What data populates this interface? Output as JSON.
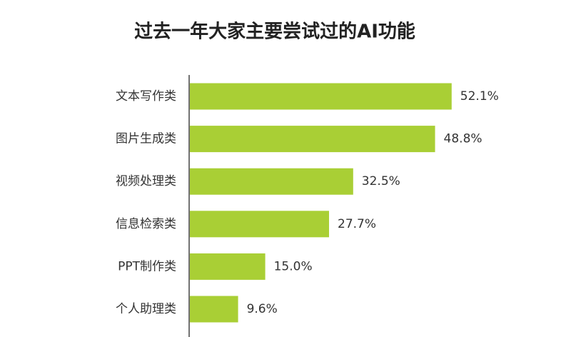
{
  "chart_data": {
    "type": "bar",
    "orientation": "horizontal",
    "title": "过去一年大家主要尝试过的AI功能",
    "categories": [
      "文本写作类",
      "图片生成类",
      "视频处理类",
      "信息检索类",
      "PPT制作类",
      "个人助理类"
    ],
    "values": [
      52.1,
      48.8,
      32.5,
      27.7,
      15.0,
      9.6
    ],
    "value_labels": [
      "52.1%",
      "48.8%",
      "32.5%",
      "27.7%",
      "15.0%",
      "9.6%"
    ],
    "color": "#a9cf35"
  }
}
